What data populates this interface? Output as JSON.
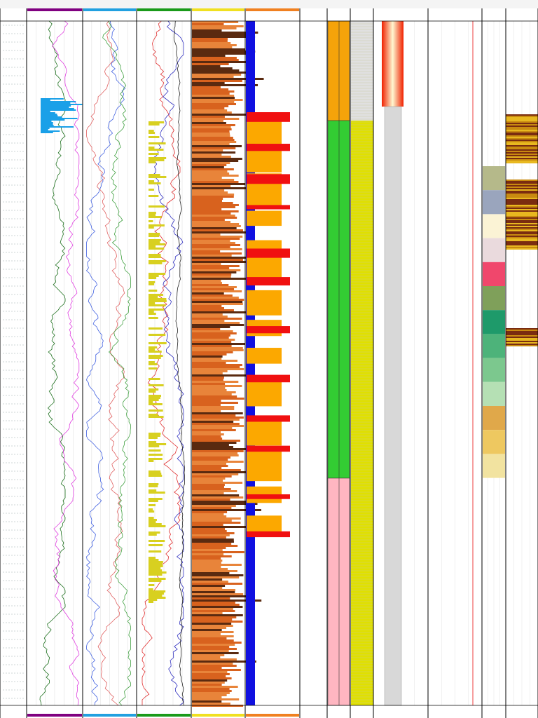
{
  "tracks": [
    {
      "header_color": "#3b5fc0"
    },
    {
      "header_color": "#800080"
    },
    {
      "header_color": "#21a0e0"
    },
    {
      "header_color": "#1a9a1a"
    },
    {
      "header_color": "#f0e020"
    },
    {
      "header_color": "#f08020"
    },
    {
      "header_color": "#888888"
    }
  ],
  "zones": [
    {
      "color": "#f5a30a"
    },
    {
      "color": "#33cc33"
    },
    {
      "color": "#ffb6c1"
    }
  ],
  "legend_colors": [
    "#b5b98a",
    "#9aa5bd",
    "#fbf3d5",
    "#eadadd",
    "#f0476c",
    "#7fa05a",
    "#1e9a6a",
    "#4db37a",
    "#7cc88e",
    "#b5e0b4",
    "#e0a84a",
    "#eec860",
    "#f2e3a0"
  ]
}
